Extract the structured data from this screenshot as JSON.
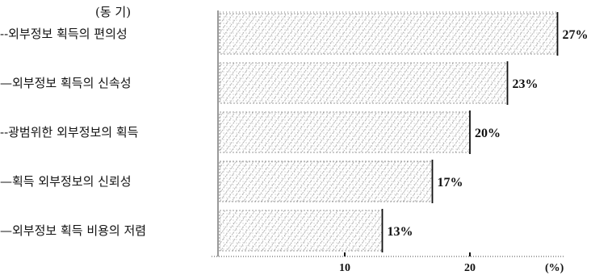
{
  "chart_data": {
    "type": "bar",
    "orientation": "horizontal",
    "header": "(동   기)",
    "categories": [
      "--외부정보 획득의 편의성",
      "—외부정보 획득의 신속성",
      "--광범위한 외부정보의 획득",
      "—획득 외부정보의 신뢰성",
      "—외부정보 획득 비용의 저렴"
    ],
    "values": [
      27,
      23,
      20,
      17,
      13
    ],
    "value_labels": [
      "27%",
      "23%",
      "20%",
      "17%",
      "13%"
    ],
    "x_ticks": [
      {
        "value": 10,
        "label": "10"
      },
      {
        "value": 20,
        "label": "20"
      }
    ],
    "x_unit_label": "(%)",
    "xlim": [
      0,
      30
    ],
    "grid": false,
    "legend": "none"
  }
}
